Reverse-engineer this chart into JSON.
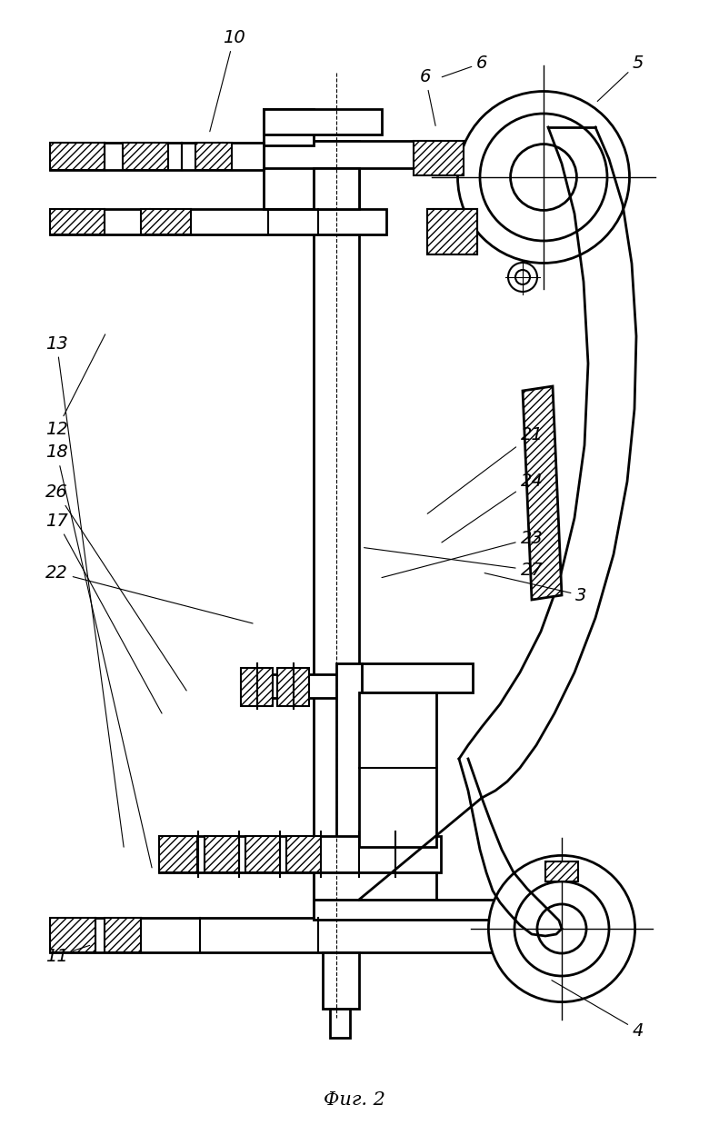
{
  "title": "Фиг. 2",
  "bg_color": "#ffffff",
  "line_color": "#000000",
  "figsize": [
    7.8,
    12.6
  ],
  "dpi": 100,
  "labels": {
    "3": [
      0.82,
      0.52,
      0.67,
      0.5
    ],
    "4": [
      0.9,
      0.9,
      0.72,
      0.835
    ],
    "5": [
      0.9,
      0.055,
      0.77,
      0.095
    ],
    "6a": [
      0.68,
      0.055,
      0.57,
      0.082
    ],
    "6b": [
      0.68,
      0.07,
      0.485,
      0.133
    ],
    "10": [
      0.33,
      0.035,
      0.295,
      0.12
    ],
    "11": [
      0.08,
      0.155,
      0.15,
      0.19
    ],
    "12": [
      0.08,
      0.375,
      0.19,
      0.325
    ],
    "13": [
      0.08,
      0.295,
      0.19,
      0.273
    ],
    "17": [
      0.08,
      0.445,
      0.265,
      0.43
    ],
    "18": [
      0.08,
      0.395,
      0.225,
      0.405
    ],
    "21": [
      0.75,
      0.38,
      0.635,
      0.395
    ],
    "22": [
      0.08,
      0.49,
      0.34,
      0.54
    ],
    "23": [
      0.75,
      0.465,
      0.565,
      0.5
    ],
    "24": [
      0.75,
      0.42,
      0.645,
      0.44
    ],
    "26": [
      0.08,
      0.415,
      0.29,
      0.43
    ],
    "27": [
      0.75,
      0.49,
      0.53,
      0.465
    ]
  }
}
